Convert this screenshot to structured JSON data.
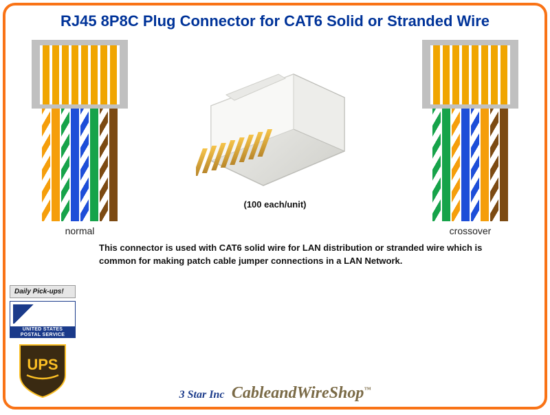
{
  "title": "RJ45 8P8C Plug Connector for CAT6 Solid or Stranded Wire",
  "unit_count": "(100 each/unit)",
  "description": "This connector is used with CAT6 solid wire for LAN distribution or stranded wire which is common for making patch cable jumper connections in a LAN Network.",
  "labels": {
    "normal": "normal",
    "crossover": "crossover"
  },
  "colors": {
    "title": "#003399",
    "border": "#f97316",
    "shell": "#c0c0c0",
    "contact": "#f0a500",
    "wire_orange": "#f59e0b",
    "wire_green": "#16a34a",
    "wire_blue": "#1d4ed8",
    "wire_brown": "#7c4a12",
    "white": "#ffffff",
    "usps_blue": "#1a3a8a",
    "ups_brown": "#3a2a12",
    "ups_gold": "#fbbf24",
    "brand_gold": "#7a6a46"
  },
  "wiring": {
    "normal": [
      {
        "type": "stripe",
        "color": "#f59e0b"
      },
      {
        "type": "solid",
        "color": "#f59e0b"
      },
      {
        "type": "stripe",
        "color": "#16a34a"
      },
      {
        "type": "solid",
        "color": "#1d4ed8"
      },
      {
        "type": "stripe",
        "color": "#1d4ed8"
      },
      {
        "type": "solid",
        "color": "#16a34a"
      },
      {
        "type": "stripe",
        "color": "#7c4a12"
      },
      {
        "type": "solid",
        "color": "#7c4a12"
      }
    ],
    "crossover": [
      {
        "type": "stripe",
        "color": "#16a34a"
      },
      {
        "type": "solid",
        "color": "#16a34a"
      },
      {
        "type": "stripe",
        "color": "#f59e0b"
      },
      {
        "type": "solid",
        "color": "#1d4ed8"
      },
      {
        "type": "stripe",
        "color": "#1d4ed8"
      },
      {
        "type": "solid",
        "color": "#f59e0b"
      },
      {
        "type": "stripe",
        "color": "#7c4a12"
      },
      {
        "type": "solid",
        "color": "#7c4a12"
      }
    ]
  },
  "shipping": {
    "daily": "Daily Pick-ups!",
    "usps_line1": "UNITED STATES",
    "usps_line2": "POSTAL SERVICE",
    "ups": "UPS"
  },
  "brand": {
    "star": "3 Star Inc",
    "shop": "CableandWireShop",
    "tm": "™"
  }
}
